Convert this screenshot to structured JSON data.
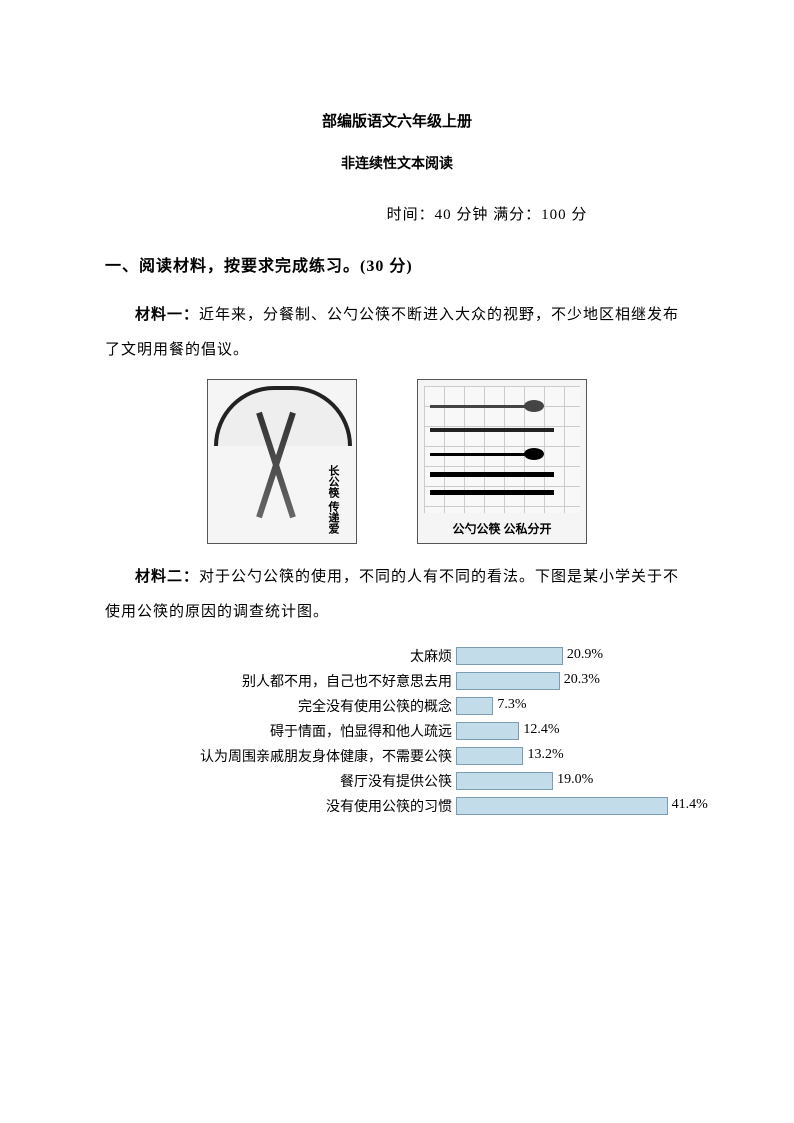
{
  "header": {
    "title": "部编版语文六年级上册",
    "subtitle": "非连续性文本阅读",
    "meta": "时间：40 分钟   满分：100 分"
  },
  "section": {
    "heading": "一、阅读材料，按要求完成练习。(30 分)",
    "para1_prefix": "材料一：",
    "para1": "近年来，分餐制、公勺公筷不断进入大众的视野，不少地区相继发布了文明用餐的倡议。",
    "img_left_text1": "长公筷",
    "img_left_text2": "传递爱",
    "img_right_caption": "公勺公筷  公私分开",
    "para2_prefix": "材料二：",
    "para2": "对于公勺公筷的使用，不同的人有不同的看法。下图是某小学关于不使用公筷的原因的调查统计图。"
  },
  "chart": {
    "type": "bar-horizontal",
    "bar_color": "#c3dcea",
    "bar_border": "#7a9db5",
    "label_fontsize": 14,
    "value_fontsize": 14,
    "max_value": 45,
    "rows": [
      {
        "label": "太麻烦",
        "value": 20.9,
        "display": "20.9%"
      },
      {
        "label": "别人都不用，自己也不好意思去用",
        "value": 20.3,
        "display": "20.3%"
      },
      {
        "label": "完全没有使用公筷的概念",
        "value": 7.3,
        "display": "7.3%"
      },
      {
        "label": "碍于情面，怕显得和他人疏远",
        "value": 12.4,
        "display": "12.4%"
      },
      {
        "label": "认为周围亲戚朋友身体健康，不需要公筷",
        "value": 13.2,
        "display": "13.2%"
      },
      {
        "label": "餐厅没有提供公筷",
        "value": 19.0,
        "display": "19.0%"
      },
      {
        "label": "没有使用公筷的习惯",
        "value": 41.4,
        "display": "41.4%"
      }
    ]
  }
}
